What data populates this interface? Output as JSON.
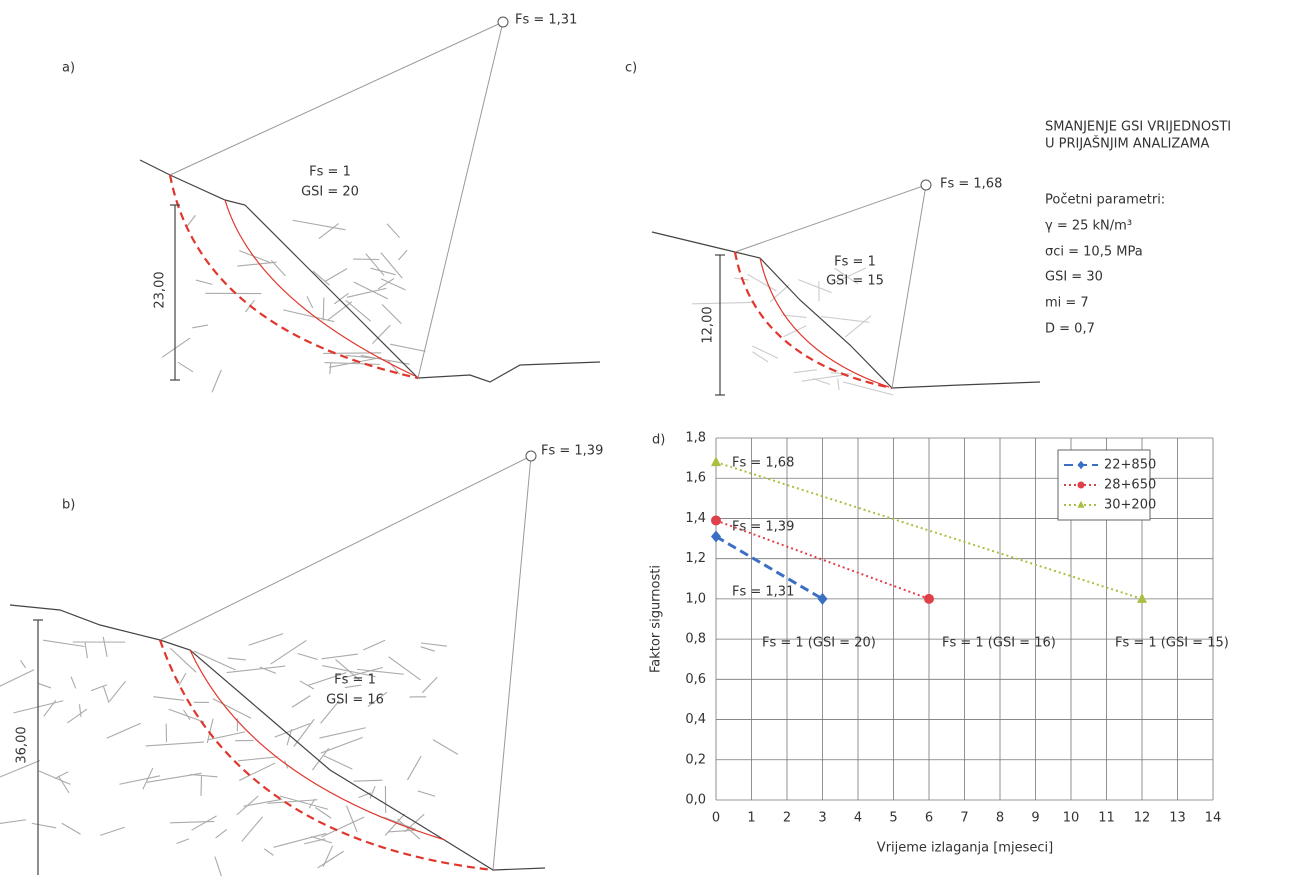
{
  "panels": {
    "a": {
      "label": "a)",
      "fs_top": "Fs = 1,31",
      "fs_inner": "Fs = 1",
      "gsi": "GSI = 20",
      "height": "23,00"
    },
    "b": {
      "label": "b)",
      "fs_top": "Fs = 1,39",
      "fs_inner": "Fs = 1",
      "gsi": "GSI = 16",
      "height": "36,00"
    },
    "c": {
      "label": "c)",
      "fs_top": "Fs = 1,68",
      "fs_inner": "Fs = 1",
      "gsi": "GSI = 15",
      "height": "12,00"
    }
  },
  "notes": {
    "title_lines": [
      "SMANJENJE GSI VRIJEDNOSTI",
      "U PRIJAŠNJIM ANALIZAMA"
    ],
    "params_title": "Početni parametri:",
    "params": [
      "γ = 25 kN/m³",
      "σci = 10,5 MPa",
      "GSI = 30",
      "mi = 7",
      "D = 0,7"
    ]
  },
  "chart_data": {
    "type": "line",
    "panel_label": "d)",
    "x_label": "Vrijeme izlaganja [mjeseci]",
    "y_label": "Faktor sigurnosti",
    "xlim": [
      0,
      14
    ],
    "xticks": [
      0,
      1,
      2,
      3,
      4,
      5,
      6,
      7,
      8,
      9,
      10,
      11,
      12,
      13,
      14
    ],
    "ylim": [
      0,
      1.8
    ],
    "yticks": [
      {
        "value": 0,
        "label": "0,0"
      },
      {
        "value": 0.2,
        "label": "0,2"
      },
      {
        "value": 0.4,
        "label": "0,4"
      },
      {
        "value": 0.6,
        "label": "0,6"
      },
      {
        "value": 0.8,
        "label": "0,8"
      },
      {
        "value": 1.0,
        "label": "1,0"
      },
      {
        "value": 1.2,
        "label": "1,2"
      },
      {
        "value": 1.4,
        "label": "1,4"
      },
      {
        "value": 1.6,
        "label": "1,6"
      },
      {
        "value": 1.8,
        "label": "1,8"
      }
    ],
    "grid": true,
    "legend": "upper right",
    "series": [
      {
        "name": "22+850",
        "color": "#3a6fc4",
        "dash": "dashed",
        "marker": "diamond",
        "x": [
          0,
          3
        ],
        "values": [
          1.31,
          1.0
        ]
      },
      {
        "name": "28+650",
        "color": "#e0404a",
        "dash": "dotted",
        "marker": "circle",
        "x": [
          0,
          6
        ],
        "values": [
          1.39,
          1.0
        ]
      },
      {
        "name": "30+200",
        "color": "#a8c040",
        "dash": "dotted",
        "marker": "triangle",
        "x": [
          0,
          12
        ],
        "values": [
          1.68,
          1.0
        ]
      }
    ],
    "annotations": [
      "Fs = 1,68",
      "Fs = 1,39",
      "Fs = 1,31",
      "Fs = 1 (GSI = 20)",
      "Fs = 1 (GSI = 16)",
      "Fs = 1 (GSI = 15)"
    ]
  }
}
